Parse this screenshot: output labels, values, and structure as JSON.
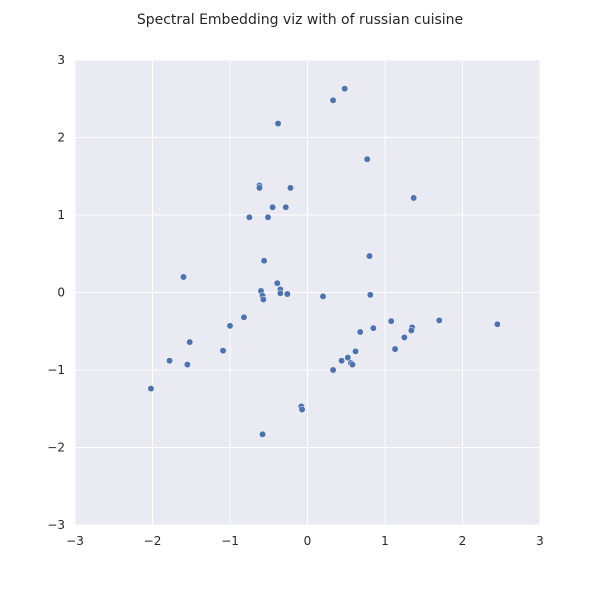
{
  "chart_data": {
    "type": "scatter",
    "title": "Spectral Embedding viz with of russian cuisine",
    "xlabel": "",
    "ylabel": "",
    "xlim": [
      -3,
      3
    ],
    "ylim": [
      -3,
      3
    ],
    "grid": true,
    "xticks": [
      -3,
      -2,
      -1,
      0,
      1,
      2,
      3
    ],
    "yticks": [
      -3,
      -2,
      -1,
      0,
      1,
      2,
      3
    ],
    "xtick_labels": [
      "−3",
      "−2",
      "−1",
      "0",
      "1",
      "2",
      "3"
    ],
    "ytick_labels": [
      "−3",
      "−2",
      "−1",
      "0",
      "1",
      "2",
      "3"
    ],
    "colors": {
      "point": "#4c72b0",
      "background": "#eaeaf2",
      "grid": "#ffffff"
    },
    "series": [
      {
        "x": [
          0.48,
          0.33,
          -0.38,
          0.77,
          -0.62,
          -0.62,
          -0.22,
          1.37,
          -0.45,
          -0.28,
          -0.75,
          -0.51,
          0.8,
          -0.56,
          -1.6,
          -0.39,
          -0.35,
          -0.6,
          -0.26,
          -0.35,
          -0.58,
          0.81,
          -0.57,
          0.2,
          1.08,
          1.7,
          2.45,
          -1.0,
          -0.82,
          0.85,
          1.35,
          0.68,
          1.34,
          -1.52,
          1.25,
          -1.09,
          1.13,
          0.62,
          -1.78,
          0.52,
          0.44,
          0.56,
          -1.55,
          0.58,
          0.33,
          -2.02,
          -0.08,
          -0.07,
          -0.58
        ],
        "y": [
          2.63,
          2.48,
          2.18,
          1.72,
          1.38,
          1.35,
          1.35,
          1.22,
          1.1,
          1.1,
          0.97,
          0.97,
          0.47,
          0.41,
          0.2,
          0.12,
          0.04,
          0.02,
          -0.02,
          -0.01,
          -0.04,
          -0.03,
          -0.09,
          -0.05,
          -0.37,
          -0.36,
          -0.41,
          -0.43,
          -0.32,
          -0.46,
          -0.45,
          -0.51,
          -0.49,
          -0.64,
          -0.58,
          -0.75,
          -0.73,
          -0.76,
          -0.88,
          -0.84,
          -0.88,
          -0.91,
          -0.93,
          -0.93,
          -1.0,
          -1.24,
          -1.47,
          -1.51,
          -1.83
        ]
      }
    ]
  }
}
